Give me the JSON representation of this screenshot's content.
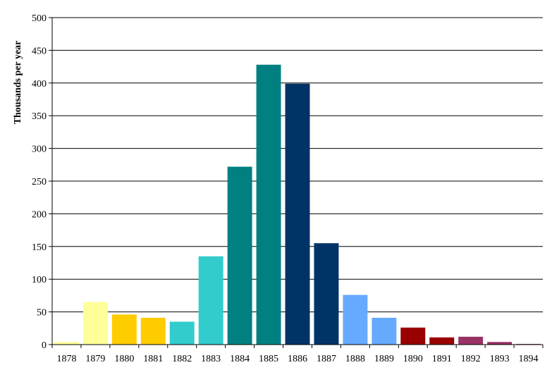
{
  "chart_data": {
    "type": "bar",
    "title": "",
    "xlabel": "",
    "ylabel": "Thousands per year",
    "ylim": [
      0,
      500
    ],
    "yticks": [
      0,
      50,
      100,
      150,
      200,
      250,
      300,
      350,
      400,
      450,
      500
    ],
    "grid": true,
    "legend": "none",
    "categories": [
      "1878",
      "1879",
      "1880",
      "1881",
      "1882",
      "1883",
      "1884",
      "1885",
      "1886",
      "1887",
      "1888",
      "1889",
      "1890",
      "1891",
      "1892",
      "1893",
      "1894"
    ],
    "values": [
      4,
      65,
      46,
      41,
      35,
      135,
      272,
      428,
      399,
      155,
      76,
      41,
      26,
      11,
      12,
      4,
      1
    ],
    "colors": [
      "#FFFF99",
      "#FFFF99",
      "#FFCC00",
      "#FFCC00",
      "#33CCCC",
      "#33CCCC",
      "#008080",
      "#008080",
      "#003366",
      "#003366",
      "#66AAFF",
      "#66AAFF",
      "#990000",
      "#990000",
      "#993366",
      "#993366",
      "#993366"
    ]
  }
}
